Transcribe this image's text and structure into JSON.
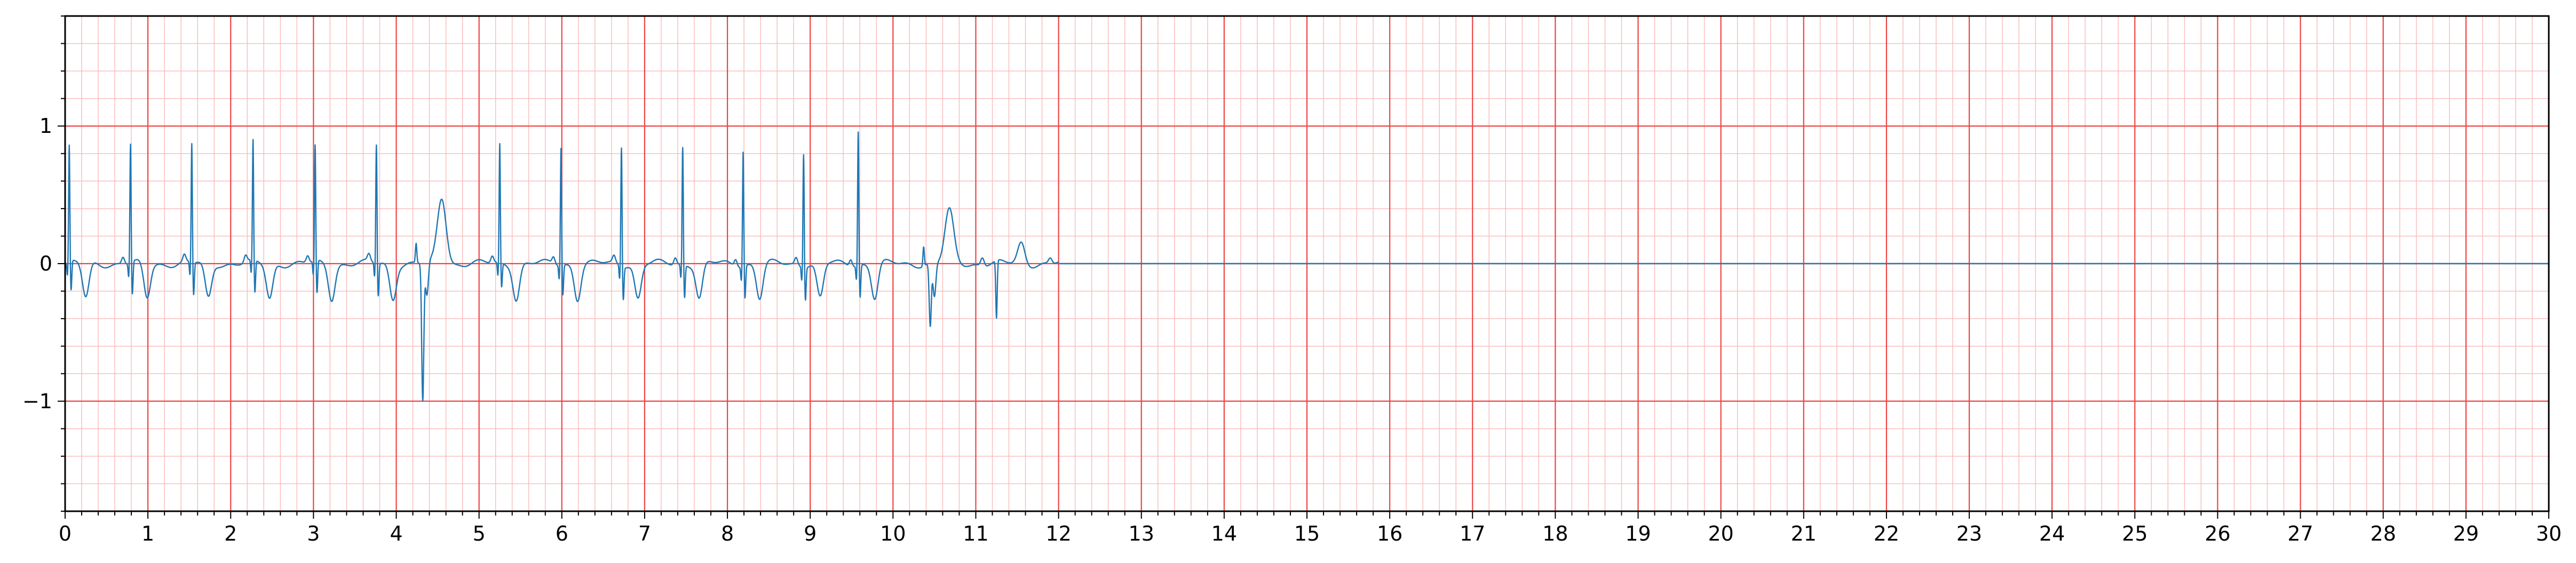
{
  "chart_data": {
    "type": "line",
    "title": "",
    "xlabel": "",
    "ylabel": "",
    "xlim": [
      0,
      30
    ],
    "ylim": [
      -1.8,
      1.8
    ],
    "grid": true,
    "grid_major_color": "#ef4444",
    "grid_minor_color": "#fbb9b9",
    "line_color": "#1f77b4",
    "x_ticks": [
      0,
      1,
      2,
      3,
      4,
      5,
      6,
      7,
      8,
      9,
      10,
      11,
      12,
      13,
      14,
      15,
      16,
      17,
      18,
      19,
      20,
      21,
      22,
      23,
      24,
      25,
      26,
      27,
      28,
      29,
      30
    ],
    "x_tick_labels": [
      "0",
      "1",
      "2",
      "3",
      "4",
      "5",
      "6",
      "7",
      "8",
      "9",
      "10",
      "11",
      "12",
      "13",
      "14",
      "15",
      "16",
      "17",
      "18",
      "19",
      "20",
      "21",
      "22",
      "23",
      "24",
      "25",
      "26",
      "27",
      "28",
      "29",
      "30"
    ],
    "y_ticks": [
      -1,
      0,
      1
    ],
    "y_tick_labels": [
      "−1",
      "0",
      "1"
    ],
    "series": [
      {
        "beats_qrs": [
          {
            "t": 0.05,
            "amp": 0.85,
            "s": -0.22
          },
          {
            "t": 0.79,
            "amp": 0.87,
            "s": -0.24
          },
          {
            "t": 1.53,
            "amp": 0.87,
            "s": -0.24
          },
          {
            "t": 2.27,
            "amp": 0.88,
            "s": -0.24
          },
          {
            "t": 3.02,
            "amp": 0.85,
            "s": -0.24
          },
          {
            "t": 3.76,
            "amp": 0.87,
            "s": -0.24
          },
          {
            "t": 5.25,
            "amp": 0.87,
            "s": -0.18
          },
          {
            "t": 5.99,
            "amp": 0.86,
            "s": -0.22
          },
          {
            "t": 6.72,
            "amp": 0.87,
            "s": -0.24
          },
          {
            "t": 7.46,
            "amp": 0.86,
            "s": -0.24
          },
          {
            "t": 8.19,
            "amp": 0.84,
            "s": -0.24
          },
          {
            "t": 8.92,
            "amp": 0.83,
            "s": -0.24
          },
          {
            "t": 9.58,
            "amp": 0.98,
            "s": -0.24
          }
        ],
        "ectopic_beats": [
          {
            "t": 4.32,
            "neg": -1.0,
            "wave_t": 4.55,
            "wave_amp": 0.48
          },
          {
            "t": 10.45,
            "neg": -0.46,
            "wave_t": 10.68,
            "wave_amp": 0.38
          }
        ],
        "end_x": 12.0
      }
    ]
  }
}
